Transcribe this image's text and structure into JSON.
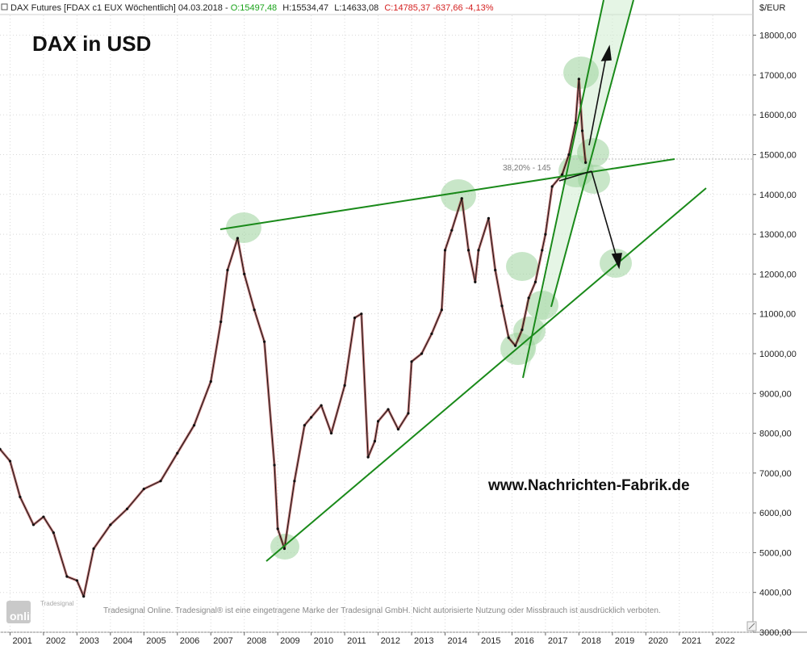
{
  "header": {
    "instrument": "DAX Futures [FDAX c1 EUX  Wöchentlich] 04.03.2018 - ",
    "open": "O:15497,48",
    "high": "H:15534,47",
    "low": "L:14633,08",
    "close": "C:14785,37 -637,66 -4,13%"
  },
  "colors": {
    "open": "#1aa31a",
    "close": "#d42020",
    "trendline": "#1a8a1a",
    "highlight": "#9bd19b",
    "channel_fill": "#cfeccf",
    "candle_down": "#8b0000"
  },
  "overlay": {
    "title": "DAX in USD",
    "watermark": "www.Nachrichten-Fabrik.de",
    "fib_label": "38,20% - 145",
    "copyright": "Tradesignal Online. Tradesignal® ist eine eingetragene Marke der Tradesignal GmbH. Nicht autorisierte Nutzung oder Missbrauch ist ausdrücklich verboten.",
    "logo_text": "online",
    "logo_subtext": "Tradesignal"
  },
  "chart_data": {
    "type": "line",
    "title": "DAX in USD",
    "ylabel": "$/EUR",
    "ylim": [
      3000,
      18500
    ],
    "xlim": [
      2000.7,
      2023.2
    ],
    "y_ticks": [
      "3000,00",
      "4000,00",
      "5000,00",
      "6000,00",
      "7000,00",
      "8000,00",
      "9000,00",
      "10000,00",
      "11000,00",
      "12000,00",
      "13000,00",
      "14000,00",
      "15000,00",
      "16000,00",
      "17000,00",
      "18000,00"
    ],
    "x_ticks": [
      "2001",
      "2002",
      "2003",
      "2004",
      "2005",
      "2006",
      "2007",
      "2008",
      "2009",
      "2010",
      "2011",
      "2012",
      "2013",
      "2014",
      "2015",
      "2016",
      "2017",
      "2018",
      "2019",
      "2020",
      "2021",
      "2022"
    ],
    "series": [
      {
        "x": [
          2000.7,
          2001.0,
          2001.3,
          2001.7,
          2002.0,
          2002.3,
          2002.7,
          2003.0,
          2003.2,
          2003.5,
          2004.0,
          2004.5,
          2005.0,
          2005.5,
          2006.0,
          2006.5,
          2007.0,
          2007.3,
          2007.5,
          2007.8,
          2008.0,
          2008.3,
          2008.6,
          2008.9,
          2009.0,
          2009.2,
          2009.5,
          2009.8,
          2010.0,
          2010.3,
          2010.6,
          2011.0,
          2011.3,
          2011.5,
          2011.7,
          2011.9,
          2012.0,
          2012.3,
          2012.6,
          2012.9,
          2013.0,
          2013.3,
          2013.6,
          2013.9,
          2014.0,
          2014.2,
          2014.5,
          2014.7,
          2014.9,
          2015.0,
          2015.3,
          2015.5,
          2015.7,
          2015.9,
          2016.1,
          2016.3,
          2016.5,
          2016.7,
          2016.9,
          2017.0,
          2017.2,
          2017.5,
          2017.7,
          2017.9,
          2018.0,
          2018.1,
          2018.2
        ],
        "values": [
          7600,
          7300,
          6400,
          5700,
          5900,
          5500,
          4400,
          4300,
          3900,
          5100,
          5700,
          6100,
          6600,
          6800,
          7500,
          8200,
          9300,
          10800,
          12100,
          12900,
          12000,
          11100,
          10300,
          7200,
          5600,
          5100,
          6800,
          8200,
          8400,
          8700,
          8000,
          9200,
          10900,
          11000,
          7400,
          7800,
          8300,
          8600,
          8100,
          8500,
          9800,
          10000,
          10500,
          11100,
          12600,
          13100,
          13900,
          12600,
          11800,
          12600,
          13400,
          12100,
          11200,
          10400,
          10200,
          10600,
          11400,
          11800,
          12600,
          13000,
          14200,
          14500,
          15000,
          15800,
          16900,
          15600,
          14800
        ]
      }
    ],
    "annotations": [
      "DAX in USD",
      "38,20% - 145",
      "www.Nachrichten-Fabrik.de"
    ]
  }
}
